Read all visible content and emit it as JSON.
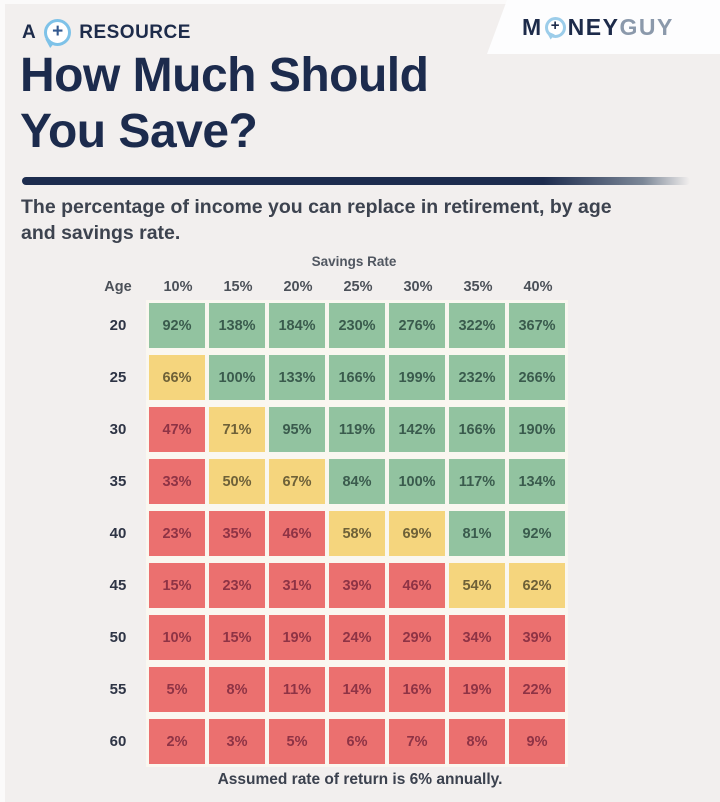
{
  "page": {
    "background": "#f2efee"
  },
  "header": {
    "badge": {
      "prefix": "A",
      "label": "RESOURCE",
      "icon": "speech-bubble-plus-icon"
    },
    "logo": {
      "m": "M",
      "ney": "NEY",
      "guy": "GUY",
      "icon": "speech-bubble-plus-icon",
      "navy": "#1d2b4a",
      "gray": "#8b99ab"
    },
    "title_line1": "How Much Should",
    "title_line2": "You Save?"
  },
  "subtitle_line1": "The percentage of income you can replace in retirement, by age",
  "subtitle_line2": "and savings rate.",
  "chart_data": {
    "type": "heatmap",
    "title": "How Much Should You Save?",
    "subtitle": "The percentage of income you can replace in retirement, by age and savings rate.",
    "x_axis_label": "Savings Rate",
    "y_axis_label": "Age",
    "columns": [
      "10%",
      "15%",
      "20%",
      "25%",
      "30%",
      "35%",
      "40%"
    ],
    "rows": [
      {
        "age": "20",
        "values": [
          "92%",
          "138%",
          "184%",
          "230%",
          "276%",
          "322%",
          "367%"
        ],
        "levels": [
          "green",
          "green",
          "green",
          "green",
          "green",
          "green",
          "green"
        ]
      },
      {
        "age": "25",
        "values": [
          "66%",
          "100%",
          "133%",
          "166%",
          "199%",
          "232%",
          "266%"
        ],
        "levels": [
          "yellow",
          "green",
          "green",
          "green",
          "green",
          "green",
          "green"
        ]
      },
      {
        "age": "30",
        "values": [
          "47%",
          "71%",
          "95%",
          "119%",
          "142%",
          "166%",
          "190%"
        ],
        "levels": [
          "red",
          "yellow",
          "green",
          "green",
          "green",
          "green",
          "green"
        ]
      },
      {
        "age": "35",
        "values": [
          "33%",
          "50%",
          "67%",
          "84%",
          "100%",
          "117%",
          "134%"
        ],
        "levels": [
          "red",
          "yellow",
          "yellow",
          "green",
          "green",
          "green",
          "green"
        ]
      },
      {
        "age": "40",
        "values": [
          "23%",
          "35%",
          "46%",
          "58%",
          "69%",
          "81%",
          "92%"
        ],
        "levels": [
          "red",
          "red",
          "red",
          "yellow",
          "yellow",
          "green",
          "green"
        ]
      },
      {
        "age": "45",
        "values": [
          "15%",
          "23%",
          "31%",
          "39%",
          "46%",
          "54%",
          "62%"
        ],
        "levels": [
          "red",
          "red",
          "red",
          "red",
          "red",
          "yellow",
          "yellow"
        ]
      },
      {
        "age": "50",
        "values": [
          "10%",
          "15%",
          "19%",
          "24%",
          "29%",
          "34%",
          "39%"
        ],
        "levels": [
          "red",
          "red",
          "red",
          "red",
          "red",
          "red",
          "red"
        ]
      },
      {
        "age": "55",
        "values": [
          "5%",
          "8%",
          "11%",
          "14%",
          "16%",
          "19%",
          "22%"
        ],
        "levels": [
          "red",
          "red",
          "red",
          "red",
          "red",
          "red",
          "red"
        ]
      },
      {
        "age": "60",
        "values": [
          "2%",
          "3%",
          "5%",
          "6%",
          "7%",
          "8%",
          "9%"
        ],
        "levels": [
          "red",
          "red",
          "red",
          "red",
          "red",
          "red",
          "red"
        ]
      }
    ],
    "palette": {
      "green": {
        "bg": "#92c3a0",
        "text": "#3a5b4d"
      },
      "yellow": {
        "bg": "#f5d57d",
        "text": "#6e6138"
      },
      "red": {
        "bg": "#eb706f",
        "text": "#8e3345"
      }
    },
    "footnote": "Assumed rate of return is 6% annually."
  }
}
